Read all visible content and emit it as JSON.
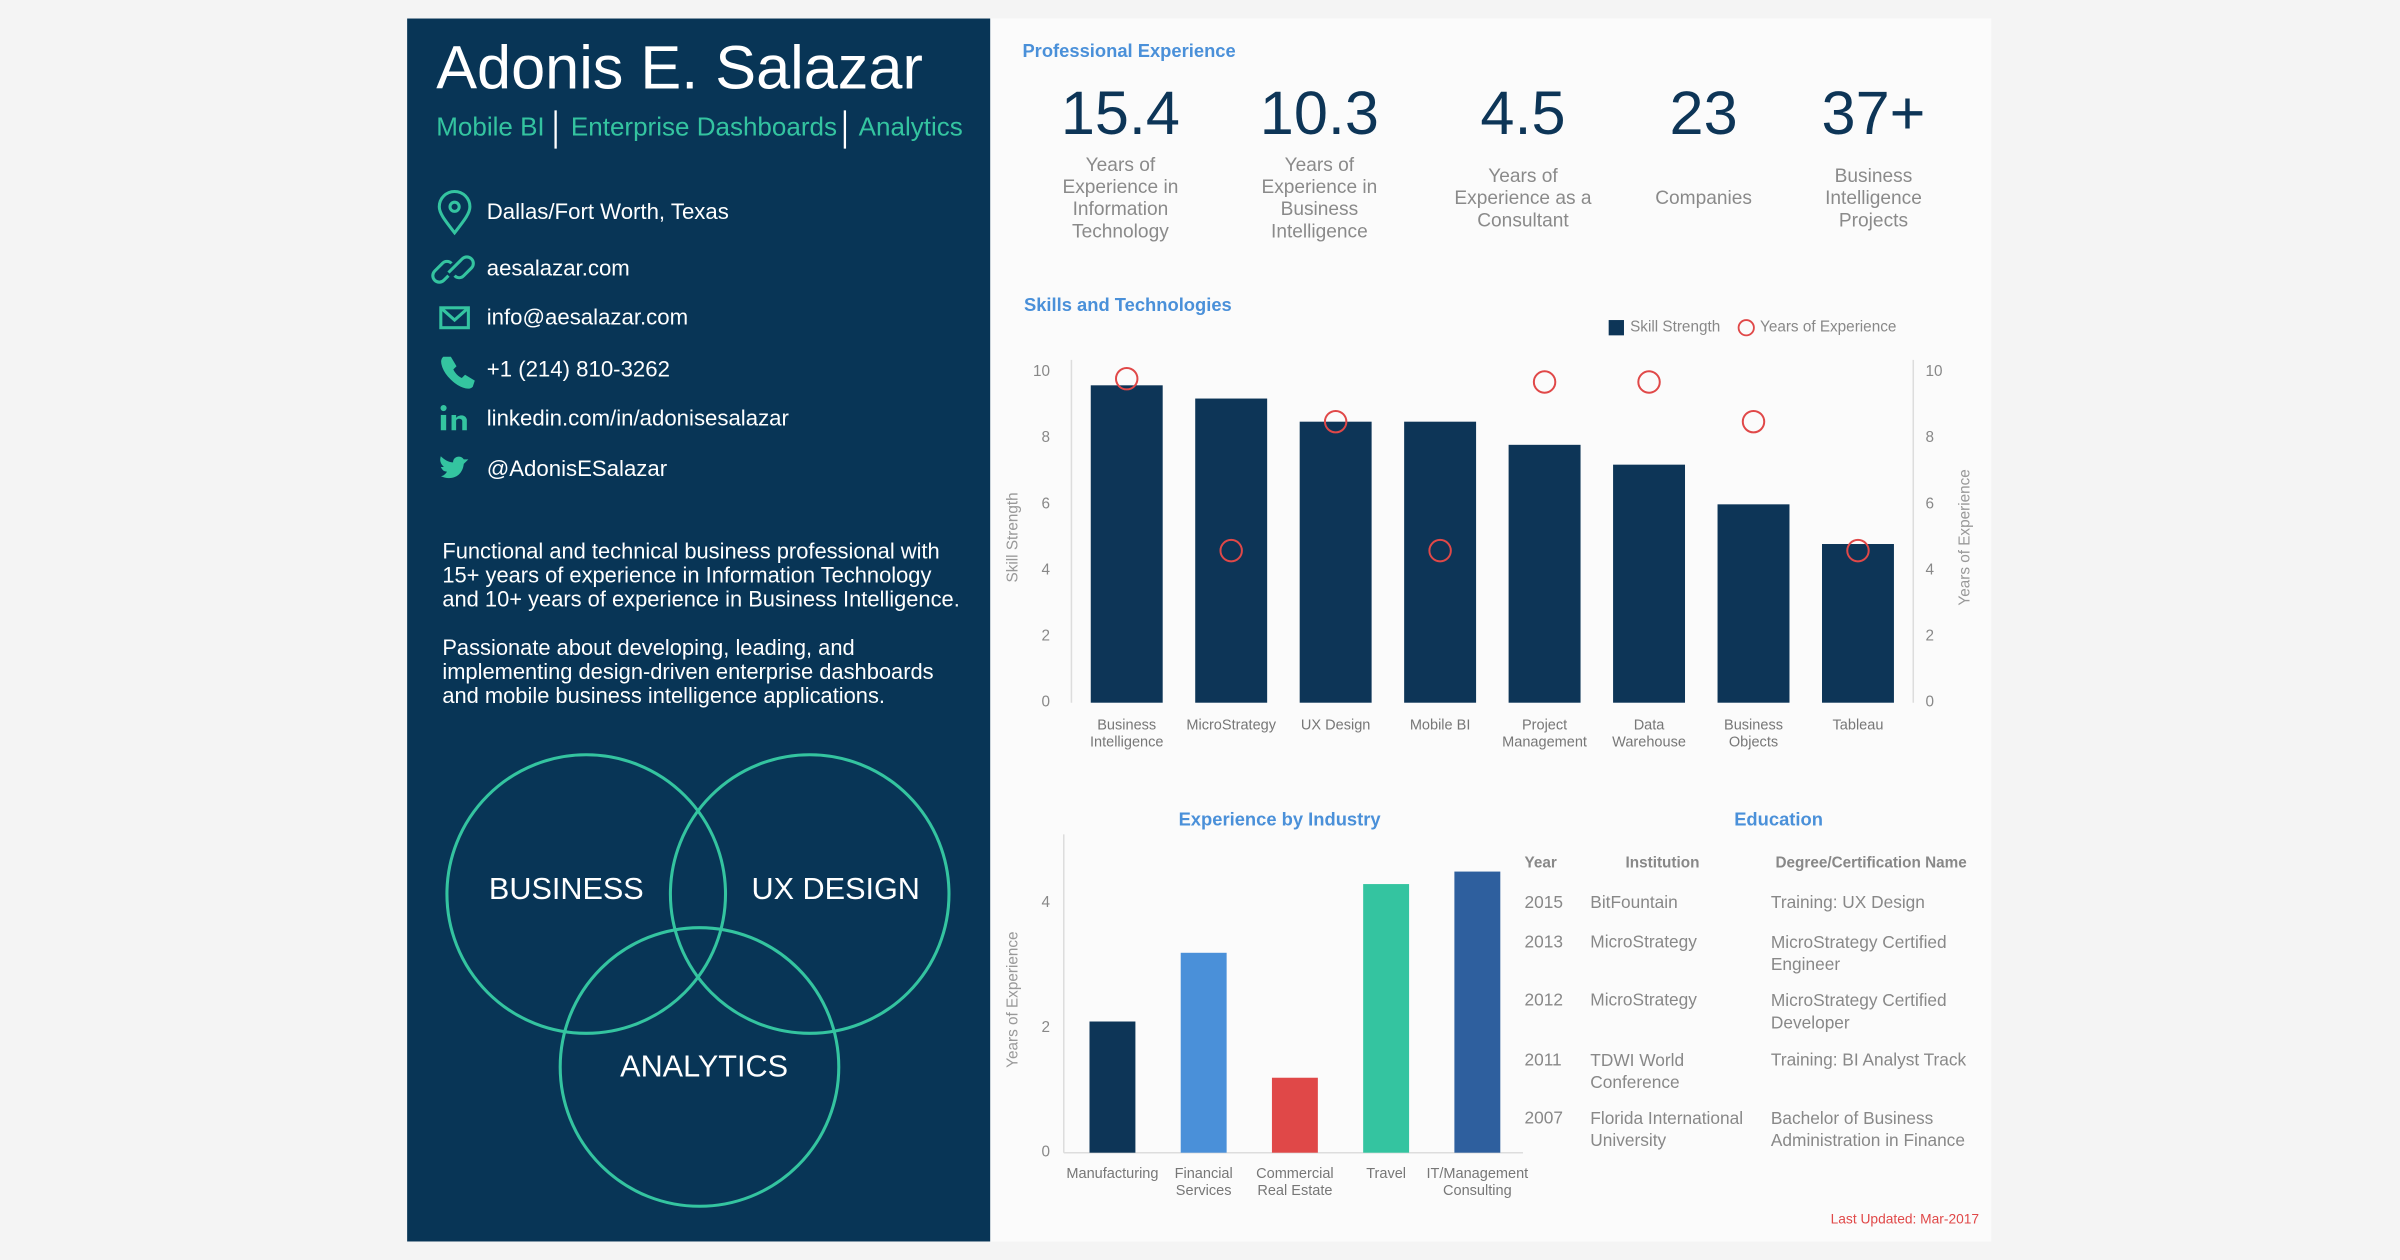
{
  "profile": {
    "name": "Adonis E. Salazar",
    "subtitle": [
      "Mobile BI",
      "Enterprise Dashboards",
      "Analytics"
    ],
    "contacts": [
      "Dallas/Fort Worth, Texas",
      "aesalazar.com",
      "info@aesalazar.com",
      "+1 (214) 810-3262",
      "linkedin.com/in/adonisesalazar",
      "@AdonisESalazar"
    ],
    "summary": [
      [
        "Functional and technical business professional with",
        "15+ years of experience in Information Technology",
        "and 10+ years of experience in Business Intelligence."
      ],
      [
        "Passionate about developing, leading, and",
        "implementing design-driven enterprise dashboards",
        "and mobile business intelligence applications."
      ]
    ],
    "venn": [
      "BUSINESS",
      "UX DESIGN",
      "ANALYTICS"
    ]
  },
  "experience": {
    "title": "Professional Experience",
    "items": [
      {
        "value": "15.4",
        "label": "Years of\nExperience in\nInformation\nTechnology"
      },
      {
        "value": "10.3",
        "label": "Years of\nExperience in\nBusiness\nIntelligence"
      },
      {
        "value": "4.5",
        "label": "Years of\nExperience as a\nConsultant"
      },
      {
        "value": "23",
        "label": "Companies"
      },
      {
        "value": "37+",
        "label": "Business\nIntelligence\nProjects"
      }
    ]
  },
  "chart_data": [
    {
      "type": "bar",
      "title": "Skills and Technologies",
      "categories": [
        "Business\nIntelligence",
        "MicroStrategy",
        "UX Design",
        "Mobile BI",
        "Project\nManagement",
        "Data\nWarehouse",
        "Business\nObjects",
        "Tableau"
      ],
      "series": [
        {
          "name": "Skill Strength",
          "type": "bar",
          "color": "#0d3557",
          "values": [
            9.6,
            9.2,
            8.5,
            8.5,
            7.8,
            7.2,
            6.0,
            4.8
          ]
        },
        {
          "name": "Years of Experience",
          "type": "scatter",
          "axis": "y2",
          "color": "#e04848",
          "values": [
            9.8,
            4.6,
            8.5,
            4.6,
            9.7,
            9.7,
            8.5,
            4.6
          ]
        }
      ],
      "y_label": "Skill Strength",
      "y2_label": "Years of Experience",
      "ylim": [
        0,
        10
      ],
      "yticks": [
        0,
        2,
        4,
        6,
        8,
        10
      ],
      "y2lim": [
        0,
        10
      ],
      "y2ticks": [
        0,
        2,
        4,
        6,
        8,
        10
      ],
      "legend": "top-right"
    },
    {
      "type": "bar",
      "title": "Experience by Industry",
      "categories": [
        "Manufacturing",
        "Financial\nServices",
        "Commercial\nReal Estate",
        "Travel",
        "IT/Management\nConsulting"
      ],
      "values": [
        2.1,
        3.2,
        1.2,
        4.3,
        4.5
      ],
      "colors": [
        "#0d3557",
        "#4a90d9",
        "#e04848",
        "#34c4a0",
        "#2e5f9e"
      ],
      "y_label": "Years of Experience",
      "ylim": [
        0,
        4.9
      ],
      "yticks": [
        0,
        2,
        4
      ]
    }
  ],
  "education": {
    "title": "Education",
    "headers": [
      "Year",
      "Institution",
      "Degree/Certification Name"
    ],
    "rows": [
      [
        "2015",
        "BitFountain",
        "Training: UX Design"
      ],
      [
        "2013",
        "MicroStrategy",
        "MicroStrategy Certified\nEngineer"
      ],
      [
        "2012",
        "MicroStrategy",
        "MicroStrategy Certified\nDeveloper"
      ],
      [
        "2011",
        "TDWI World\nConference",
        "Training: BI Analyst Track"
      ],
      [
        "2007",
        "Florida International\nUniversity",
        "Bachelor of Business\nAdministration in Finance"
      ]
    ]
  },
  "last_updated": "Last Updated: Mar-2017"
}
